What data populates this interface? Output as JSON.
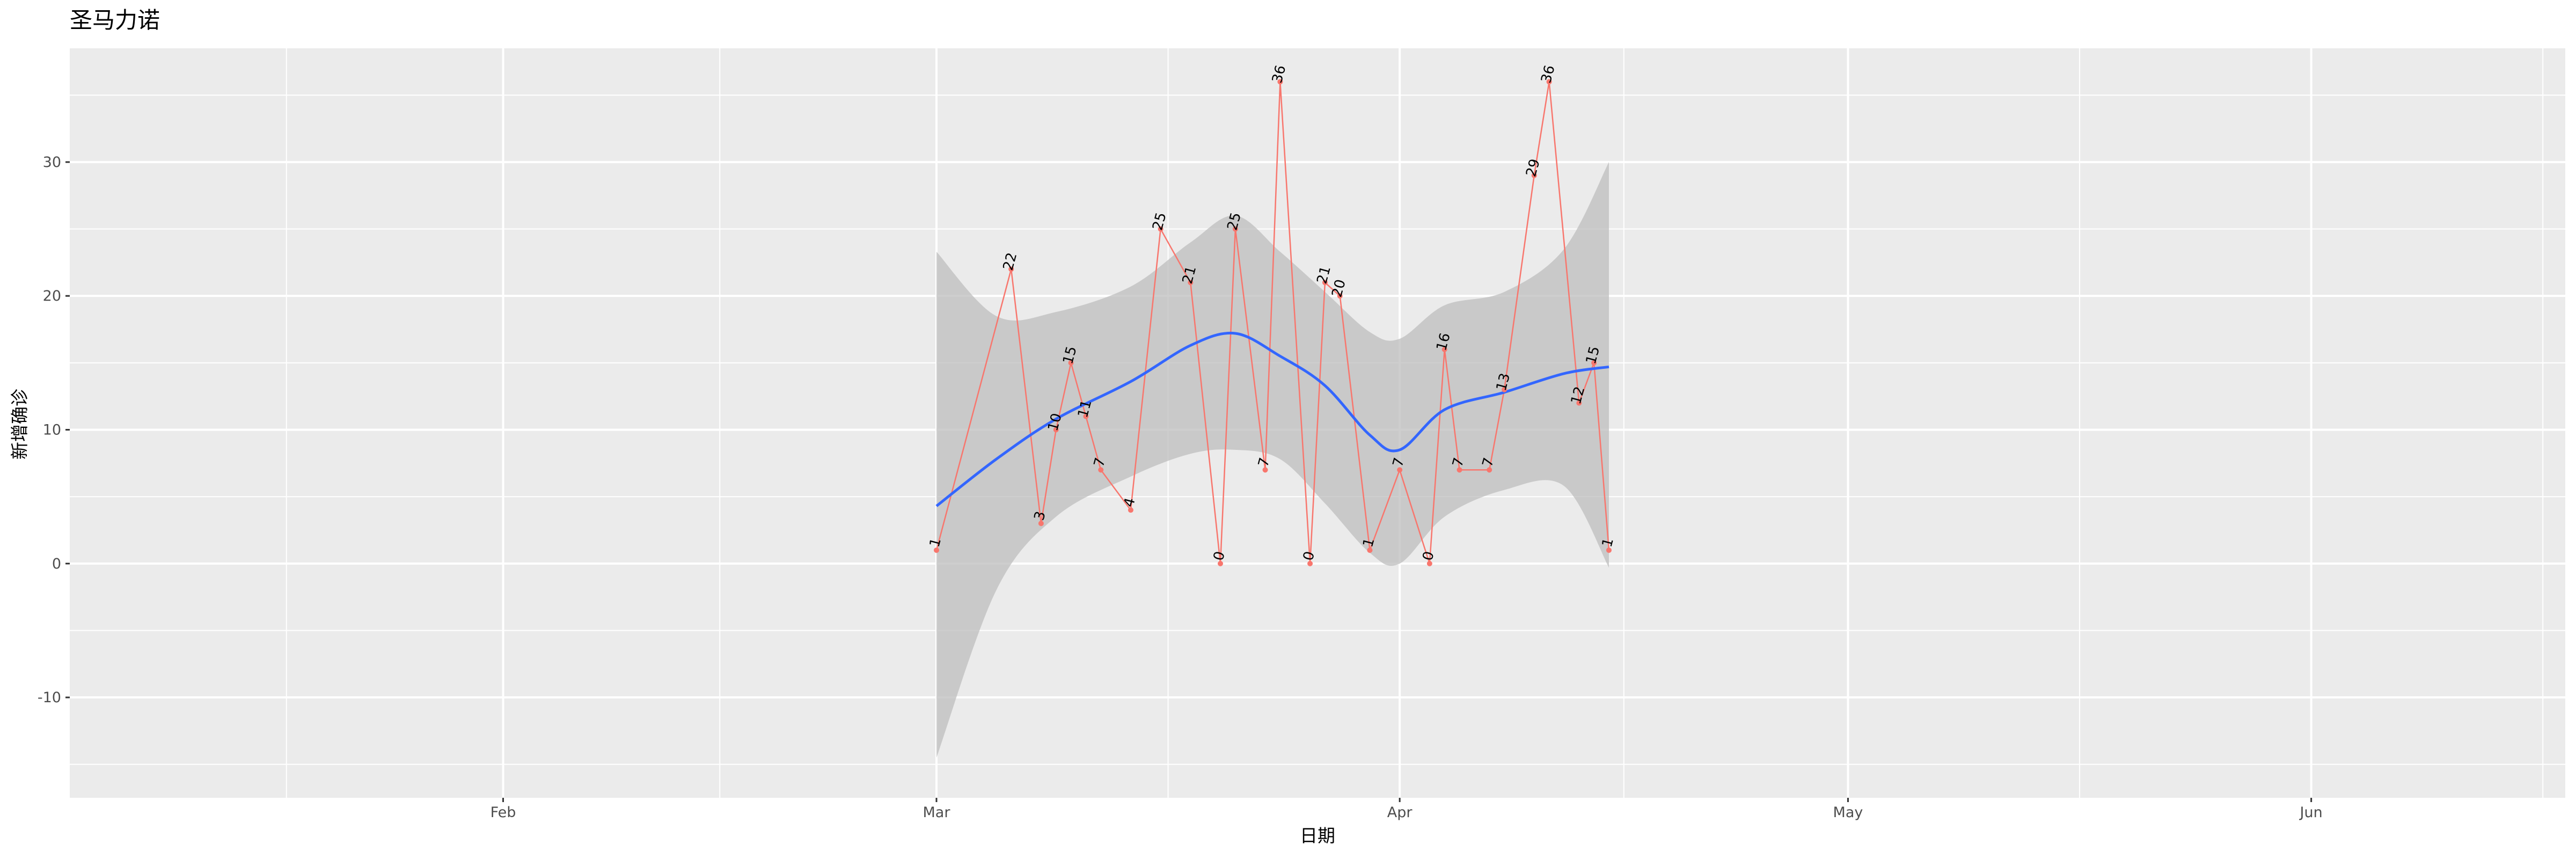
{
  "chart_data": {
    "type": "line",
    "title": "圣马力诺",
    "xlabel": "日期",
    "ylabel": "新增确诊",
    "x_axis": {
      "type": "date",
      "range": [
        "2020-01-03",
        "2020-06-18"
      ],
      "ticks": [
        {
          "date": "2020-02-01",
          "label": "Feb"
        },
        {
          "date": "2020-03-01",
          "label": "Mar"
        },
        {
          "date": "2020-04-01",
          "label": "Apr"
        },
        {
          "date": "2020-05-01",
          "label": "May"
        },
        {
          "date": "2020-06-01",
          "label": "Jun"
        }
      ]
    },
    "y_axis": {
      "range": [
        -17.5,
        38.5
      ],
      "ticks": [
        -10,
        0,
        10,
        20,
        30
      ]
    },
    "grid": true,
    "legend": "none",
    "colors": {
      "panel": "#ebebeb",
      "grid": "#ffffff",
      "series": "#f8766d",
      "smooth": "#3366ff",
      "ribbon": "#bdbdbd"
    },
    "series": [
      {
        "points": [
          {
            "x": "2020-03-01",
            "y": 1
          },
          {
            "x": "2020-03-06",
            "y": 22
          },
          {
            "x": "2020-03-08",
            "y": 3
          },
          {
            "x": "2020-03-09",
            "y": 10
          },
          {
            "x": "2020-03-10",
            "y": 15
          },
          {
            "x": "2020-03-11",
            "y": 11
          },
          {
            "x": "2020-03-12",
            "y": 7
          },
          {
            "x": "2020-03-14",
            "y": 4
          },
          {
            "x": "2020-03-16",
            "y": 25
          },
          {
            "x": "2020-03-18",
            "y": 21
          },
          {
            "x": "2020-03-20",
            "y": 0
          },
          {
            "x": "2020-03-21",
            "y": 25
          },
          {
            "x": "2020-03-23",
            "y": 7
          },
          {
            "x": "2020-03-24",
            "y": 36
          },
          {
            "x": "2020-03-26",
            "y": 0
          },
          {
            "x": "2020-03-27",
            "y": 21
          },
          {
            "x": "2020-03-28",
            "y": 20
          },
          {
            "x": "2020-03-30",
            "y": 1
          },
          {
            "x": "2020-04-01",
            "y": 7
          },
          {
            "x": "2020-04-03",
            "y": 0
          },
          {
            "x": "2020-04-04",
            "y": 16
          },
          {
            "x": "2020-04-05",
            "y": 7
          },
          {
            "x": "2020-04-07",
            "y": 7
          },
          {
            "x": "2020-04-08",
            "y": 13
          },
          {
            "x": "2020-04-10",
            "y": 29
          },
          {
            "x": "2020-04-11",
            "y": 36
          },
          {
            "x": "2020-04-13",
            "y": 12
          },
          {
            "x": "2020-04-14",
            "y": 15
          },
          {
            "x": "2020-04-15",
            "y": 1
          }
        ]
      }
    ],
    "smooth": {
      "x": [
        "2020-03-01",
        "2020-03-05",
        "2020-03-09",
        "2020-03-14",
        "2020-03-18",
        "2020-03-21",
        "2020-03-24",
        "2020-03-27",
        "2020-03-30",
        "2020-04-01",
        "2020-04-04",
        "2020-04-08",
        "2020-04-12",
        "2020-04-15"
      ],
      "y": [
        4.3,
        7.8,
        10.8,
        13.6,
        16.3,
        17.2,
        15.5,
        13.3,
        9.6,
        8.5,
        11.5,
        12.8,
        14.2,
        14.7
      ],
      "ymin": [
        -14.5,
        -2.0,
        3.5,
        6.5,
        8.2,
        8.5,
        7.8,
        4.5,
        0.8,
        0.0,
        3.5,
        5.5,
        5.8,
        -0.3
      ],
      "ymax": [
        23.3,
        18.5,
        18.8,
        20.7,
        24.0,
        26.0,
        23.3,
        20.3,
        17.3,
        16.8,
        19.3,
        20.3,
        23.5,
        30.0
      ]
    }
  }
}
